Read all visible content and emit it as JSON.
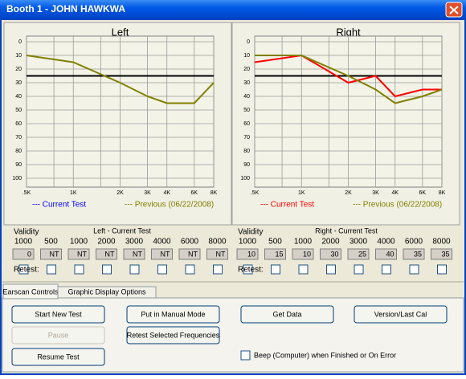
{
  "window": {
    "title": "Booth 1 - JOHN HAWKWA"
  },
  "chart_data": [
    {
      "type": "line",
      "title": "Left",
      "x": [
        500,
        1000,
        2000,
        3000,
        4000,
        6000,
        8000
      ],
      "xscale": "log",
      "xlim": [
        500,
        8000
      ],
      "xticks": [
        {
          "value": 500,
          "label": ".5K"
        },
        {
          "value": 1000,
          "label": "1K"
        },
        {
          "value": 2000,
          "label": "2K"
        },
        {
          "value": 3000,
          "label": "3K"
        },
        {
          "value": 4000,
          "label": "4K"
        },
        {
          "value": 6000,
          "label": "6K"
        },
        {
          "value": 8000,
          "label": "8K"
        }
      ],
      "xgrid": [
        500,
        750,
        1000,
        1500,
        2000,
        3000,
        4000,
        6000,
        8000
      ],
      "ylim": [
        0,
        100
      ],
      "y_inverted": true,
      "yticks": [
        0,
        10,
        20,
        30,
        40,
        50,
        60,
        70,
        80,
        90,
        100
      ],
      "grid": true,
      "reference_line": {
        "value": 25,
        "color": "#000000"
      },
      "series": [
        {
          "name": "--- Current Test",
          "color": "#0000ff",
          "values": [
            null,
            null,
            null,
            null,
            null,
            null,
            null
          ]
        },
        {
          "name": "--- Previous (06/22/2008)",
          "color": "#808000",
          "values": [
            10,
            15,
            30,
            40,
            45,
            45,
            30
          ]
        }
      ]
    },
    {
      "type": "line",
      "title": "Right",
      "x": [
        500,
        1000,
        2000,
        3000,
        4000,
        6000,
        8000
      ],
      "xscale": "log",
      "xlim": [
        500,
        8000
      ],
      "xticks": [
        {
          "value": 500,
          "label": ".5K"
        },
        {
          "value": 1000,
          "label": "1K"
        },
        {
          "value": 2000,
          "label": "2K"
        },
        {
          "value": 3000,
          "label": "3K"
        },
        {
          "value": 4000,
          "label": "4K"
        },
        {
          "value": 6000,
          "label": "6K"
        },
        {
          "value": 8000,
          "label": "8K"
        }
      ],
      "xgrid": [
        500,
        750,
        1000,
        1500,
        2000,
        3000,
        4000,
        6000,
        8000
      ],
      "ylim": [
        0,
        100
      ],
      "y_inverted": true,
      "yticks": [
        0,
        10,
        20,
        30,
        40,
        50,
        60,
        70,
        80,
        90,
        100
      ],
      "grid": true,
      "reference_line": {
        "value": 25,
        "color": "#000000"
      },
      "series": [
        {
          "name": "--- Current Test",
          "color": "#ff0000",
          "values": [
            15,
            10,
            30,
            25,
            40,
            35,
            35
          ]
        },
        {
          "name": "--- Previous (06/22/2008)",
          "color": "#808000",
          "values": [
            10,
            10,
            25,
            35,
            45,
            40,
            35
          ]
        }
      ]
    }
  ],
  "validity": [
    {
      "label": "Validity",
      "heading": "Left - Current Test",
      "frequencies": [
        "1000",
        "500",
        "1000",
        "2000",
        "3000",
        "4000",
        "6000",
        "8000"
      ],
      "values": [
        "0",
        "NT",
        "NT",
        "NT",
        "NT",
        "NT",
        "NT",
        "NT"
      ],
      "retest_label": "Retest:"
    },
    {
      "label": "Validity",
      "heading": "Right - Current Test",
      "frequencies": [
        "1000",
        "500",
        "1000",
        "2000",
        "3000",
        "4000",
        "6000",
        "8000"
      ],
      "values": [
        "10",
        "15",
        "10",
        "30",
        "25",
        "40",
        "35",
        "35"
      ],
      "retest_label": "Retest:"
    }
  ],
  "tabs": [
    "Earscan Controls",
    "Graphic Display Options"
  ],
  "buttons": {
    "start": "Start New Test",
    "manual": "Put in Manual Mode",
    "get_data": "Get Data",
    "version": "Version/Last Cal",
    "pause": "Pause",
    "retest": "Retest Selected Frequencies",
    "resume": "Resume Test"
  },
  "beep_label": "Beep (Computer) when Finished or On Error"
}
